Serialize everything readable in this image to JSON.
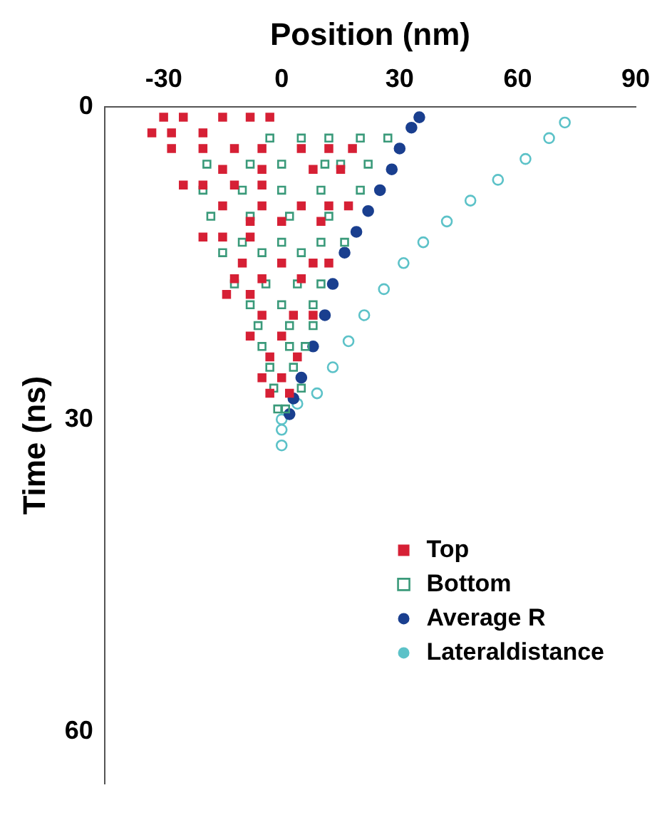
{
  "chart_data": {
    "type": "scatter",
    "xlabel": "Position (nm)",
    "ylabel": "Time (ns)",
    "xlim": [
      -45,
      90
    ],
    "xticks": [
      -30,
      0,
      30,
      60,
      90
    ],
    "ylim": [
      65,
      0
    ],
    "yticks": [
      0,
      30,
      60
    ],
    "grid": false,
    "legend": "bottom right",
    "series": [
      {
        "name": "Top",
        "color": "#d62035",
        "marker": "square",
        "x": [
          -30,
          -25,
          -15,
          -8,
          -3,
          -33,
          -28,
          -20,
          -28,
          -20,
          -12,
          -5,
          5,
          12,
          18,
          15,
          8,
          -5,
          -15,
          -25,
          -20,
          -12,
          -5,
          -15,
          -5,
          5,
          12,
          17,
          10,
          0,
          -8,
          -20,
          -15,
          -8,
          -10,
          0,
          8,
          12,
          5,
          -5,
          -12,
          -14,
          -8,
          -5,
          3,
          8,
          -8,
          0,
          -3,
          4,
          -5,
          0,
          -3,
          2
        ],
        "values": [
          1,
          1,
          1,
          1,
          1,
          2.5,
          2.5,
          2.5,
          4,
          4,
          4,
          4,
          4,
          4,
          4,
          6,
          6,
          6,
          6,
          7.5,
          7.5,
          7.5,
          7.5,
          9.5,
          9.5,
          9.5,
          9.5,
          9.5,
          11,
          11,
          11,
          12.5,
          12.5,
          12.5,
          15,
          15,
          15,
          15,
          16.5,
          16.5,
          16.5,
          18,
          18,
          20,
          20,
          20,
          22,
          22,
          24,
          24,
          26,
          26,
          27.5,
          27.5
        ]
      },
      {
        "name": "Bottom",
        "color": "#3a9a7a",
        "marker": "square",
        "x": [
          -3,
          5,
          12,
          20,
          27,
          -19,
          -8,
          0,
          11,
          15,
          22,
          -20,
          -10,
          0,
          10,
          20,
          -18,
          -8,
          2,
          12,
          -10,
          0,
          10,
          16,
          -15,
          -5,
          5,
          -12,
          -4,
          4,
          10,
          -8,
          0,
          8,
          -6,
          2,
          8,
          -5,
          2,
          6,
          -3,
          3,
          -2,
          5,
          -1,
          1
        ],
        "values": [
          3,
          3,
          3,
          3,
          3,
          5.5,
          5.5,
          5.5,
          5.5,
          5.5,
          5.5,
          8,
          8,
          8,
          8,
          8,
          10.5,
          10.5,
          10.5,
          10.5,
          13,
          13,
          13,
          13,
          14,
          14,
          14,
          17,
          17,
          17,
          17,
          19,
          19,
          19,
          21,
          21,
          21,
          23,
          23,
          23,
          25,
          25,
          27,
          27,
          29,
          29
        ]
      },
      {
        "name": "Average R",
        "color": "#1a3f8f",
        "marker": "circle",
        "x": [
          35,
          33,
          30,
          28,
          25,
          22,
          19,
          16,
          13,
          11,
          8,
          5,
          3,
          2
        ],
        "values": [
          1,
          2,
          4,
          6,
          8,
          10,
          12,
          14,
          17,
          20,
          23,
          26,
          28,
          29.5
        ]
      },
      {
        "name": "Lateraldistance",
        "color": "#5cc2c8",
        "marker": "circle",
        "x": [
          72,
          68,
          62,
          55,
          48,
          42,
          36,
          31,
          26,
          21,
          17,
          13,
          9,
          4,
          0,
          0,
          0
        ],
        "values": [
          1.5,
          3,
          5,
          7,
          9,
          11,
          13,
          15,
          17.5,
          20,
          22.5,
          25,
          27.5,
          28.5,
          30,
          31,
          32.5
        ]
      }
    ]
  }
}
